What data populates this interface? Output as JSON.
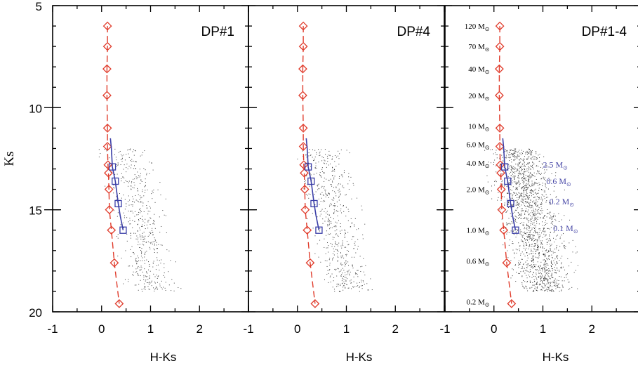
{
  "chart_data": {
    "type": "scatter",
    "ylabel": "Ks",
    "xlabel": "H-Ks",
    "xlim": [
      -1,
      3
    ],
    "ylim": [
      20,
      5
    ],
    "xticks": [
      "-1",
      "0",
      "1",
      "2"
    ],
    "yticks": [
      "5",
      "10",
      "15",
      "20"
    ],
    "y_inverted": true,
    "colors": {
      "ms_track": "#e03c2c",
      "pms_track": "#3b3fa8",
      "stars": "#000000",
      "blue_label": "#4a4aa8"
    },
    "panels": [
      {
        "title": "DP#1",
        "show_mass_labels": false
      },
      {
        "title": "DP#4",
        "show_mass_labels": false
      },
      {
        "title": "DP#1-4",
        "show_mass_labels": true
      }
    ],
    "main_sequence": {
      "x": [
        0.12,
        0.12,
        0.11,
        0.11,
        0.12,
        0.12,
        0.13,
        0.14,
        0.15,
        0.16,
        0.2,
        0.26,
        0.36
      ],
      "y": [
        6.0,
        7.0,
        8.1,
        9.4,
        11.0,
        11.9,
        12.8,
        13.2,
        14.0,
        15.0,
        16.0,
        17.6,
        19.6
      ]
    },
    "pms_isochrone": {
      "x": [
        0.18,
        0.2,
        0.22,
        0.28,
        0.34,
        0.38,
        0.44
      ],
      "y": [
        11.5,
        12.0,
        12.9,
        13.6,
        14.7,
        15.3,
        16.0
      ]
    },
    "pms_markers": {
      "x": [
        0.22,
        0.28,
        0.34,
        0.44
      ],
      "y": [
        12.9,
        13.6,
        14.7,
        16.0
      ]
    },
    "mass_labels_ms": [
      {
        "text": "120 M",
        "y": 6.0
      },
      {
        "text": "70 M",
        "y": 7.0
      },
      {
        "text": "40 M",
        "y": 8.1
      },
      {
        "text": "20 M",
        "y": 9.4
      },
      {
        "text": "10 M",
        "y": 10.9
      },
      {
        "text": "6.0 M",
        "y": 11.8
      },
      {
        "text": "4.0 M",
        "y": 12.7
      },
      {
        "text": "2.0 M",
        "y": 14.0
      },
      {
        "text": "1.0 M",
        "y": 16.0
      },
      {
        "text": "0.6 M",
        "y": 17.5
      },
      {
        "text": "0.2 M",
        "y": 19.5
      }
    ],
    "mass_labels_pms": [
      {
        "text": "2.5 M",
        "y": 12.8
      },
      {
        "text": "0.6 M",
        "y": 13.6
      },
      {
        "text": "0.2 M",
        "y": 14.6
      },
      {
        "text": "0.1 M",
        "y": 15.9
      }
    ],
    "sun_symbol": "⊙"
  }
}
